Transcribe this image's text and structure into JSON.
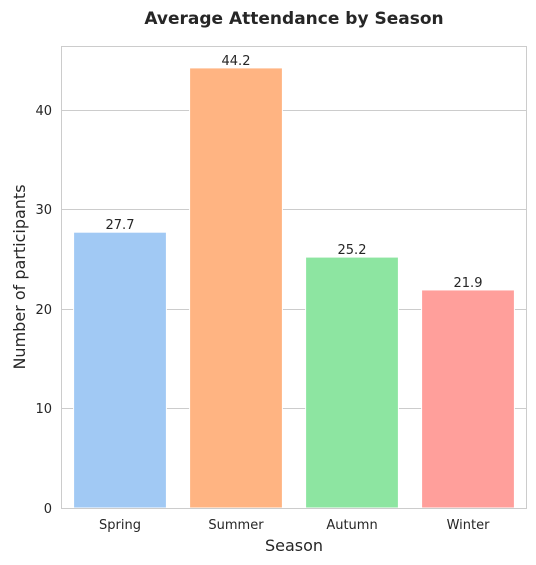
{
  "chart_data": {
    "type": "bar",
    "title": "Average Attendance by Season",
    "xlabel": "Season",
    "ylabel": "Number of participants",
    "categories": [
      "Spring",
      "Summer",
      "Autumn",
      "Winter"
    ],
    "values": [
      27.7,
      44.2,
      25.2,
      21.9
    ],
    "data_labels": [
      "27.7",
      "44.2",
      "25.2",
      "21.9"
    ],
    "colors": [
      "#a1c9f4",
      "#ffb482",
      "#8de5a1",
      "#ff9f9b"
    ],
    "yticks": [
      0,
      10,
      20,
      30,
      40
    ],
    "ylim": [
      0,
      46.4
    ],
    "grid": true,
    "legend": "none"
  }
}
